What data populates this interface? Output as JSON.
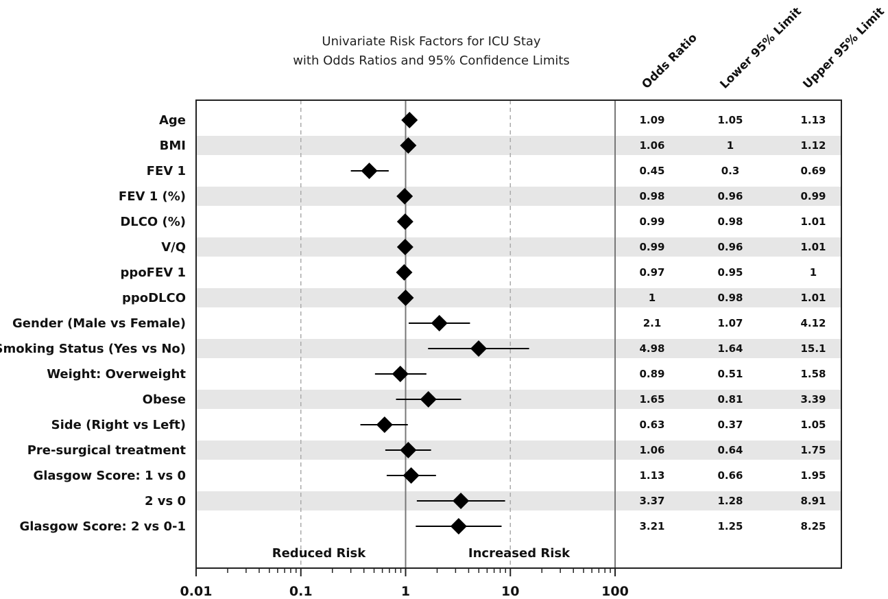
{
  "chart_data": {
    "type": "forest",
    "title_lines": [
      "Univariate Risk Factors for ICU Stay",
      "with Odds Ratios and 95% Confidence Limits"
    ],
    "columns": [
      "Odds Ratio",
      "Lower 95% Limit",
      "Upper 95% Limit"
    ],
    "x_scale": "log",
    "xlim": [
      0.01,
      100
    ],
    "x_ticks": [
      "0.01",
      "0.1",
      "1",
      "10",
      "100"
    ],
    "reference_value": 1,
    "dashed_reference_lines": [
      0.1,
      10
    ],
    "region_labels": [
      "Reduced Risk",
      "Increased Risk"
    ],
    "alternate_row_shading": true,
    "rows": [
      {
        "label": "Age",
        "or": 1.09,
        "lower": 1.05,
        "upper": 1.13,
        "or_text": "1.09",
        "lower_text": "1.05",
        "upper_text": "1.13"
      },
      {
        "label": "BMI",
        "or": 1.06,
        "lower": 1,
        "upper": 1.12,
        "or_text": "1.06",
        "lower_text": "1",
        "upper_text": "1.12"
      },
      {
        "label": "FEV 1",
        "or": 0.45,
        "lower": 0.3,
        "upper": 0.69,
        "or_text": "0.45",
        "lower_text": "0.3",
        "upper_text": "0.69"
      },
      {
        "label": "FEV 1 (%)",
        "or": 0.98,
        "lower": 0.96,
        "upper": 0.99,
        "or_text": "0.98",
        "lower_text": "0.96",
        "upper_text": "0.99"
      },
      {
        "label": "DLCO (%)",
        "or": 0.99,
        "lower": 0.98,
        "upper": 1.01,
        "or_text": "0.99",
        "lower_text": "0.98",
        "upper_text": "1.01"
      },
      {
        "label": "V/Q",
        "or": 0.99,
        "lower": 0.96,
        "upper": 1.01,
        "or_text": "0.99",
        "lower_text": "0.96",
        "upper_text": "1.01"
      },
      {
        "label": "ppoFEV 1",
        "or": 0.97,
        "lower": 0.95,
        "upper": 1,
        "or_text": "0.97",
        "lower_text": "0.95",
        "upper_text": "1"
      },
      {
        "label": "ppoDLCO",
        "or": 1,
        "lower": 0.98,
        "upper": 1.01,
        "or_text": "1",
        "lower_text": "0.98",
        "upper_text": "1.01"
      },
      {
        "label": "Gender (Male vs Female)",
        "or": 2.1,
        "lower": 1.07,
        "upper": 4.12,
        "or_text": "2.1",
        "lower_text": "1.07",
        "upper_text": "4.12"
      },
      {
        "label": "Smoking Status (Yes vs No)",
        "or": 4.98,
        "lower": 1.64,
        "upper": 15.1,
        "or_text": "4.98",
        "lower_text": "1.64",
        "upper_text": "15.1"
      },
      {
        "label": "Weight: Overweight",
        "or": 0.89,
        "lower": 0.51,
        "upper": 1.58,
        "or_text": "0.89",
        "lower_text": "0.51",
        "upper_text": "1.58"
      },
      {
        "label": "Obese",
        "or": 1.65,
        "lower": 0.81,
        "upper": 3.39,
        "or_text": "1.65",
        "lower_text": "0.81",
        "upper_text": "3.39"
      },
      {
        "label": "Side (Right vs Left)",
        "or": 0.63,
        "lower": 0.37,
        "upper": 1.05,
        "or_text": "0.63",
        "lower_text": "0.37",
        "upper_text": "1.05"
      },
      {
        "label": "Pre-surgical treatment",
        "or": 1.06,
        "lower": 0.64,
        "upper": 1.75,
        "or_text": "1.06",
        "lower_text": "0.64",
        "upper_text": "1.75"
      },
      {
        "label": "Glasgow Score: 1 vs 0",
        "or": 1.13,
        "lower": 0.66,
        "upper": 1.95,
        "or_text": "1.13",
        "lower_text": "0.66",
        "upper_text": "1.95"
      },
      {
        "label": "2 vs 0",
        "or": 3.37,
        "lower": 1.28,
        "upper": 8.91,
        "or_text": "3.37",
        "lower_text": "1.28",
        "upper_text": "8.91"
      },
      {
        "label": "Glasgow Score: 2 vs 0-1",
        "or": 3.21,
        "lower": 1.25,
        "upper": 8.25,
        "or_text": "3.21",
        "lower_text": "1.25",
        "upper_text": "8.25"
      }
    ],
    "colors": {
      "marker": "#000000",
      "shade": "#e6e6e6",
      "reference_line": "#777777",
      "dashed_line": "#aaaaaa",
      "frame": "#222222"
    }
  }
}
